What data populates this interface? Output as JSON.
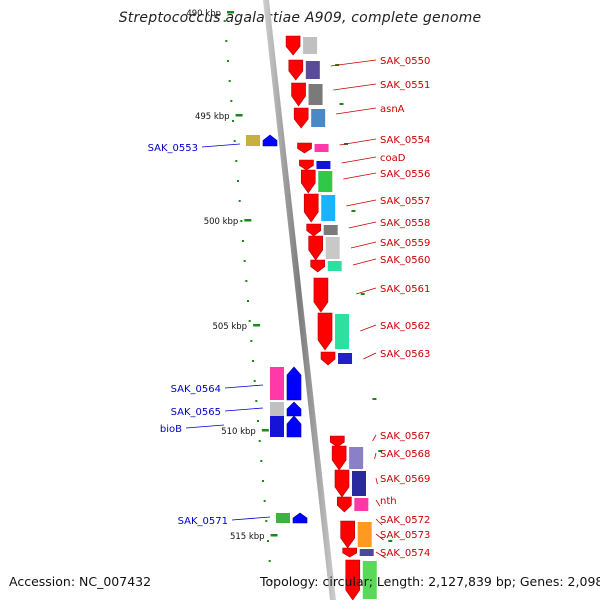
{
  "title": "Streptococcus agalactiae A909, complete genome",
  "footer": {
    "accession": "Accession: NC_007432",
    "summary": "Topology: circular; Length: 2,127,839 bp; Genes: 2,098"
  },
  "scale": {
    "unit": "kbp",
    "labels": [
      "490 kbp",
      "495 kbp",
      "500 kbp",
      "505 kbp",
      "510 kbp",
      "515 kbp"
    ]
  },
  "genes": {
    "forward_strand_color": "#ff0000",
    "reverse_strand_color": "#0000ff",
    "right_labels": [
      "SAK_0550",
      "SAK_0551",
      "asnA",
      "SAK_0554",
      "coaD",
      "SAK_0556",
      "SAK_0557",
      "SAK_0558",
      "SAK_0559",
      "SAK_0560",
      "SAK_0561",
      "SAK_0562",
      "SAK_0563",
      "SAK_0567",
      "SAK_0568",
      "SAK_0569",
      "nth",
      "SAK_0572",
      "SAK_0573",
      "SAK_0574"
    ],
    "left_labels": [
      "SAK_0553",
      "SAK_0564",
      "SAK_0565",
      "bioB",
      "SAK_0571"
    ]
  },
  "colors": {
    "backbone": "#8a8a8a",
    "forward_label": "#cc0000",
    "reverse_label": "#0000cc",
    "tick": "#1a8a1a"
  }
}
